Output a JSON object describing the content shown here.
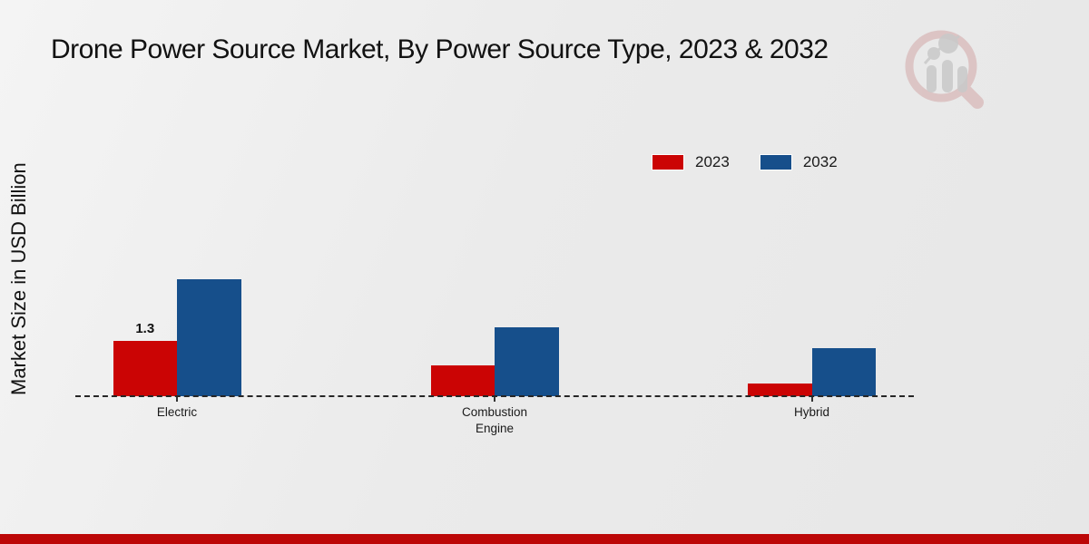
{
  "chart_data": {
    "type": "bar",
    "title": "Drone Power Source Market, By Power Source Type, 2023 & 2032",
    "ylabel": "Market Size in USD Billion",
    "xlabel": "",
    "categories": [
      "Electric",
      "Combustion Engine",
      "Hybrid"
    ],
    "series": [
      {
        "name": "2023",
        "color": "#cb0404",
        "values": [
          1.3,
          0.72,
          0.3
        ]
      },
      {
        "name": "2032",
        "color": "#164f8b",
        "values": [
          2.73,
          1.61,
          1.12
        ]
      }
    ],
    "data_labels": [
      {
        "series": "2023",
        "category": "Electric",
        "text": "1.3"
      }
    ],
    "ylim": [
      0,
      3
    ],
    "grid": false,
    "legend_position": "upper-right",
    "baseline_style": "dashed"
  },
  "colors": {
    "background": "#ebebeb",
    "footer_bar": "#bc0707",
    "text": "#1a1a1a",
    "baseline": "#262626",
    "watermark_ring": "#d49c9c",
    "watermark_bars": "#c9c9c9"
  },
  "watermark": {
    "icon": "magnifier-bar-chart-logo"
  }
}
